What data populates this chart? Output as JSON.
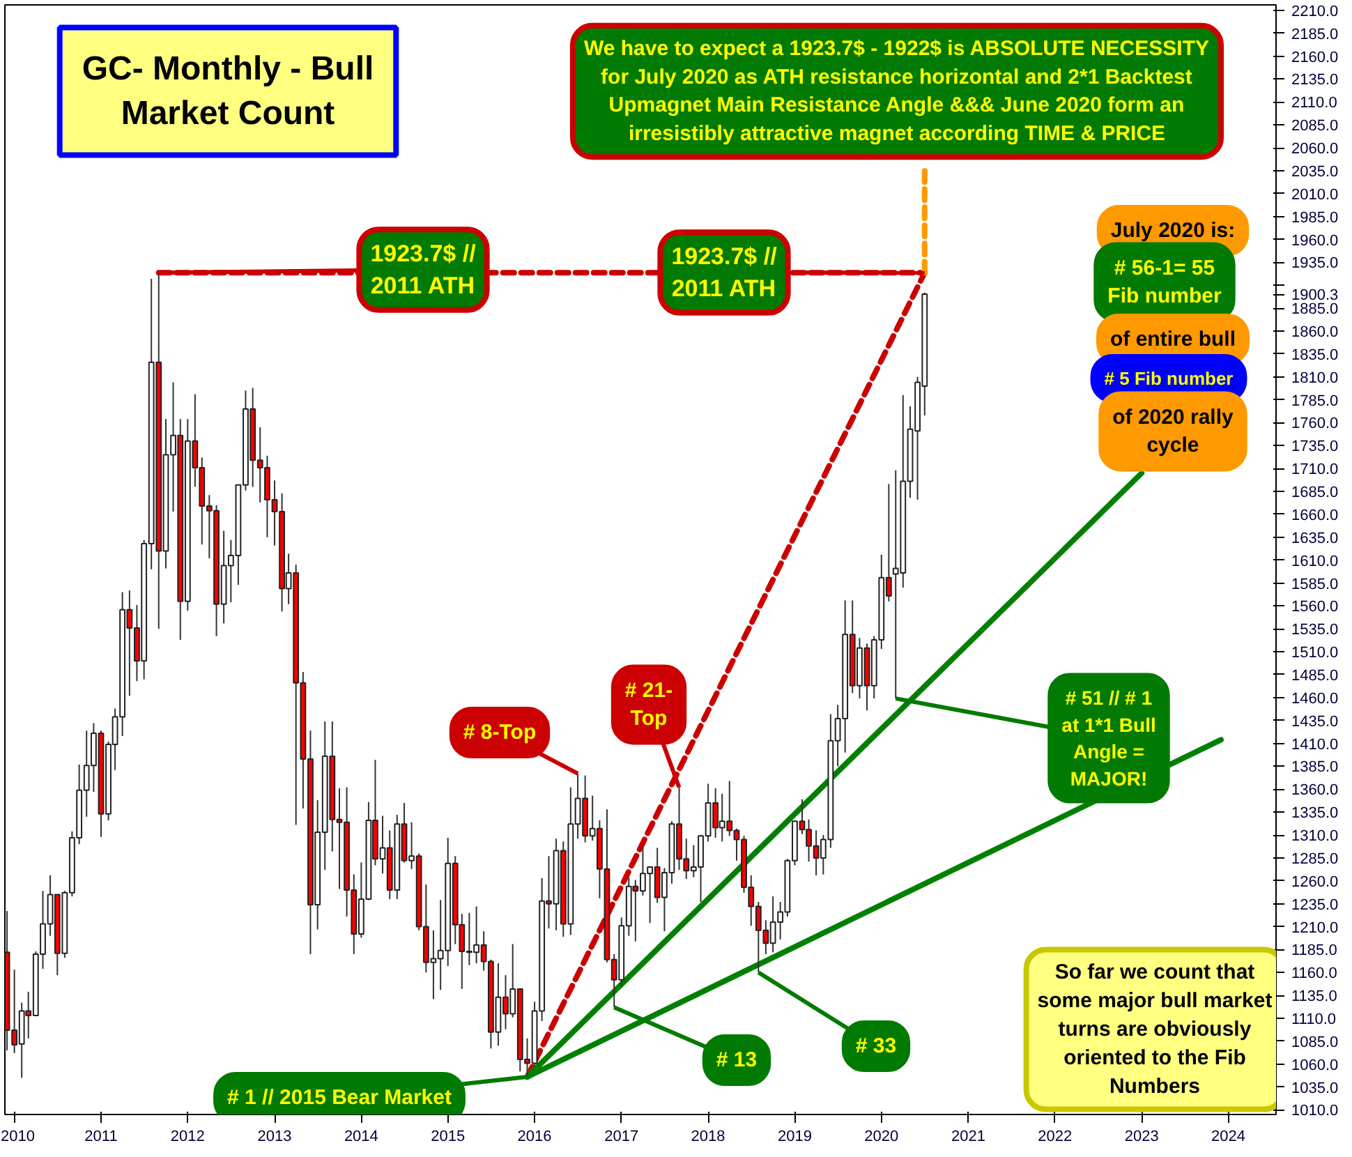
{
  "chart_data": {
    "type": "candlestick",
    "title": "GC- Monthly - Bull Market Count",
    "xlim": [
      "2009-11-22",
      "2024-07-20"
    ],
    "ylim": [
      1005,
      2216
    ],
    "xticks": [
      "2010",
      "2011",
      "2012",
      "2013",
      "2014",
      "2015",
      "2016",
      "2017",
      "2018",
      "2019",
      "2020",
      "2021",
      "2022",
      "2023",
      "2024"
    ],
    "yticks": [
      {
        "value": 1010,
        "label": "1010.0"
      },
      {
        "value": 1035,
        "label": "1035.0"
      },
      {
        "value": 1060,
        "label": "1060.0"
      },
      {
        "value": 1085,
        "label": "1085.0"
      },
      {
        "value": 1110,
        "label": "1110.0"
      },
      {
        "value": 1135,
        "label": "1135.0"
      },
      {
        "value": 1160,
        "label": "1160.0"
      },
      {
        "value": 1185,
        "label": "1185.0"
      },
      {
        "value": 1210,
        "label": "1210.0"
      },
      {
        "value": 1235,
        "label": "1235.0"
      },
      {
        "value": 1260,
        "label": "1260.0"
      },
      {
        "value": 1285,
        "label": "1285.0"
      },
      {
        "value": 1310,
        "label": "1310.0"
      },
      {
        "value": 1335,
        "label": "1335.0"
      },
      {
        "value": 1360,
        "label": "1360.0"
      },
      {
        "value": 1385,
        "label": "1385.0"
      },
      {
        "value": 1410,
        "label": "1410.0"
      },
      {
        "value": 1435,
        "label": "1435.0"
      },
      {
        "value": 1460,
        "label": "1460.0"
      },
      {
        "value": 1485,
        "label": "1485.0"
      },
      {
        "value": 1510,
        "label": "1510.0"
      },
      {
        "value": 1535,
        "label": "1535.0"
      },
      {
        "value": 1560,
        "label": "1560.0"
      },
      {
        "value": 1585,
        "label": "1585.0"
      },
      {
        "value": 1610,
        "label": "1610.0"
      },
      {
        "value": 1635,
        "label": "1635.0"
      },
      {
        "value": 1660,
        "label": "1660.0"
      },
      {
        "value": 1685,
        "label": "1685.0"
      },
      {
        "value": 1710,
        "label": "1710.0"
      },
      {
        "value": 1735,
        "label": "1735.0"
      },
      {
        "value": 1760,
        "label": "1760.0"
      },
      {
        "value": 1785,
        "label": "1785.0"
      },
      {
        "value": 1810,
        "label": "1810.0"
      },
      {
        "value": 1835,
        "label": "1835.0"
      },
      {
        "value": 1860,
        "label": "1860.0"
      },
      {
        "value": 1885,
        "label": "1885.0"
      },
      {
        "value": 1900.3,
        "label": "1900.3"
      },
      {
        "value": 1910,
        "label": null
      },
      {
        "value": 1935,
        "label": "1935.0"
      },
      {
        "value": 1960,
        "label": "1960.0"
      },
      {
        "value": 1985,
        "label": "1985.0"
      },
      {
        "value": 2010,
        "label": "2010.0"
      },
      {
        "value": 2035,
        "label": "2035.0"
      },
      {
        "value": 2060,
        "label": "2060.0"
      },
      {
        "value": 2085,
        "label": "2085.0"
      },
      {
        "value": 2110,
        "label": "2110.0"
      },
      {
        "value": 2135,
        "label": "2135.0"
      },
      {
        "value": 2160,
        "label": "2160.0"
      },
      {
        "value": 2185,
        "label": "2185.0"
      },
      {
        "value": 2210,
        "label": "2210.0"
      }
    ],
    "x": [
      "2009-12",
      "2010-01",
      "2010-02",
      "2010-03",
      "2010-04",
      "2010-05",
      "2010-06",
      "2010-07",
      "2010-08",
      "2010-09",
      "2010-10",
      "2010-11",
      "2010-12",
      "2011-01",
      "2011-02",
      "2011-03",
      "2011-04",
      "2011-05",
      "2011-06",
      "2011-07",
      "2011-08",
      "2011-09",
      "2011-10",
      "2011-11",
      "2011-12",
      "2012-01",
      "2012-02",
      "2012-03",
      "2012-04",
      "2012-05",
      "2012-06",
      "2012-07",
      "2012-08",
      "2012-09",
      "2012-10",
      "2012-11",
      "2012-12",
      "2013-01",
      "2013-02",
      "2013-03",
      "2013-04",
      "2013-05",
      "2013-06",
      "2013-07",
      "2013-08",
      "2013-09",
      "2013-10",
      "2013-11",
      "2013-12",
      "2014-01",
      "2014-02",
      "2014-03",
      "2014-04",
      "2014-05",
      "2014-06",
      "2014-07",
      "2014-08",
      "2014-09",
      "2014-10",
      "2014-11",
      "2014-12",
      "2015-01",
      "2015-02",
      "2015-03",
      "2015-04",
      "2015-05",
      "2015-06",
      "2015-07",
      "2015-08",
      "2015-09",
      "2015-10",
      "2015-11",
      "2015-12",
      "2016-01",
      "2016-02",
      "2016-03",
      "2016-04",
      "2016-05",
      "2016-06",
      "2016-07",
      "2016-08",
      "2016-09",
      "2016-10",
      "2016-11",
      "2016-12",
      "2017-01",
      "2017-02",
      "2017-03",
      "2017-04",
      "2017-05",
      "2017-06",
      "2017-07",
      "2017-08",
      "2017-09",
      "2017-10",
      "2017-11",
      "2017-12",
      "2018-01",
      "2018-02",
      "2018-03",
      "2018-04",
      "2018-05",
      "2018-06",
      "2018-07",
      "2018-08",
      "2018-09",
      "2018-10",
      "2018-11",
      "2018-12",
      "2019-01",
      "2019-02",
      "2019-03",
      "2019-04",
      "2019-05",
      "2019-06",
      "2019-07",
      "2019-08",
      "2019-09",
      "2019-10",
      "2019-11",
      "2019-12",
      "2020-01",
      "2020-02",
      "2020-03",
      "2020-04",
      "2020-05",
      "2020-06",
      "2020-07"
    ],
    "ohlc": [
      [
        1182,
        1227,
        1075,
        1097
      ],
      [
        1097,
        1163,
        1072,
        1081
      ],
      [
        1082,
        1127,
        1045,
        1118
      ],
      [
        1118,
        1139,
        1088,
        1113
      ],
      [
        1113,
        1183,
        1113,
        1180
      ],
      [
        1180,
        1249,
        1164,
        1213
      ],
      [
        1213,
        1266,
        1200,
        1245
      ],
      [
        1245,
        1245,
        1157,
        1181
      ],
      [
        1181,
        1249,
        1176,
        1247
      ],
      [
        1247,
        1314,
        1243,
        1307
      ],
      [
        1307,
        1387,
        1300,
        1359
      ],
      [
        1359,
        1424,
        1330,
        1386
      ],
      [
        1386,
        1432,
        1357,
        1421
      ],
      [
        1421,
        1424,
        1308,
        1333
      ],
      [
        1333,
        1412,
        1326,
        1409
      ],
      [
        1409,
        1448,
        1381,
        1439
      ],
      [
        1439,
        1575,
        1418,
        1556
      ],
      [
        1556,
        1577,
        1462,
        1536
      ],
      [
        1536,
        1561,
        1478,
        1500
      ],
      [
        1500,
        1632,
        1480,
        1628
      ],
      [
        1628,
        1917,
        1600,
        1826
      ],
      [
        1826,
        1923.7,
        1535,
        1620
      ],
      [
        1620,
        1764,
        1601,
        1725
      ],
      [
        1725,
        1804,
        1663,
        1746
      ],
      [
        1746,
        1764,
        1523,
        1565
      ],
      [
        1565,
        1764,
        1555,
        1740
      ],
      [
        1740,
        1791,
        1690,
        1711
      ],
      [
        1711,
        1722,
        1627,
        1669
      ],
      [
        1669,
        1681,
        1612,
        1664
      ],
      [
        1664,
        1670,
        1527,
        1562
      ],
      [
        1562,
        1642,
        1541,
        1604
      ],
      [
        1604,
        1632,
        1564,
        1615
      ],
      [
        1615,
        1692,
        1583,
        1692
      ],
      [
        1692,
        1795,
        1686,
        1775
      ],
      [
        1775,
        1798,
        1690,
        1719
      ],
      [
        1719,
        1755,
        1673,
        1711
      ],
      [
        1711,
        1724,
        1635,
        1676
      ],
      [
        1676,
        1697,
        1626,
        1663
      ],
      [
        1663,
        1683,
        1554,
        1579
      ],
      [
        1579,
        1617,
        1562,
        1596
      ],
      [
        1596,
        1605,
        1321,
        1476
      ],
      [
        1476,
        1488,
        1339,
        1393
      ],
      [
        1393,
        1424,
        1180,
        1234
      ],
      [
        1234,
        1348,
        1207,
        1313
      ],
      [
        1313,
        1434,
        1272,
        1396
      ],
      [
        1396,
        1434,
        1292,
        1327
      ],
      [
        1327,
        1361,
        1251,
        1324
      ],
      [
        1324,
        1362,
        1221,
        1250
      ],
      [
        1250,
        1267,
        1180,
        1202
      ],
      [
        1202,
        1280,
        1198,
        1240
      ],
      [
        1240,
        1346,
        1239,
        1326
      ],
      [
        1326,
        1392,
        1277,
        1284
      ],
      [
        1284,
        1331,
        1268,
        1296
      ],
      [
        1296,
        1315,
        1240,
        1250
      ],
      [
        1250,
        1332,
        1240,
        1322
      ],
      [
        1322,
        1345,
        1280,
        1282
      ],
      [
        1282,
        1324,
        1273,
        1287
      ],
      [
        1287,
        1290,
        1206,
        1210
      ],
      [
        1210,
        1256,
        1160,
        1171
      ],
      [
        1171,
        1206,
        1131,
        1175
      ],
      [
        1175,
        1239,
        1141,
        1184
      ],
      [
        1184,
        1307,
        1167,
        1279
      ],
      [
        1279,
        1287,
        1191,
        1212
      ],
      [
        1212,
        1224,
        1142,
        1183
      ],
      [
        1183,
        1225,
        1168,
        1182
      ],
      [
        1182,
        1232,
        1170,
        1190
      ],
      [
        1190,
        1205,
        1162,
        1172
      ],
      [
        1172,
        1174,
        1077,
        1095
      ],
      [
        1095,
        1170,
        1080,
        1133
      ],
      [
        1133,
        1157,
        1098,
        1115
      ],
      [
        1115,
        1191,
        1111,
        1142
      ],
      [
        1142,
        1142,
        1052,
        1065
      ],
      [
        1065,
        1088,
        1046,
        1061
      ],
      [
        1061,
        1128,
        1058,
        1118
      ],
      [
        1118,
        1263,
        1107,
        1238
      ],
      [
        1238,
        1287,
        1208,
        1235
      ],
      [
        1235,
        1306,
        1206,
        1293
      ],
      [
        1293,
        1303,
        1199,
        1213
      ],
      [
        1213,
        1362,
        1201,
        1322
      ],
      [
        1322,
        1377,
        1306,
        1350
      ],
      [
        1350,
        1375,
        1302,
        1309
      ],
      [
        1309,
        1353,
        1304,
        1317
      ],
      [
        1317,
        1326,
        1241,
        1273
      ],
      [
        1273,
        1338,
        1171,
        1174
      ],
      [
        1174,
        1180,
        1122,
        1152
      ],
      [
        1152,
        1220,
        1145,
        1211
      ],
      [
        1211,
        1264,
        1200,
        1254
      ],
      [
        1254,
        1261,
        1194,
        1249
      ],
      [
        1249,
        1297,
        1244,
        1268
      ],
      [
        1268,
        1276,
        1214,
        1275
      ],
      [
        1275,
        1296,
        1236,
        1242
      ],
      [
        1242,
        1274,
        1205,
        1269
      ],
      [
        1269,
        1325,
        1257,
        1322
      ],
      [
        1322,
        1362,
        1272,
        1284
      ],
      [
        1284,
        1306,
        1262,
        1271
      ],
      [
        1271,
        1299,
        1264,
        1275
      ],
      [
        1275,
        1310,
        1237,
        1309
      ],
      [
        1309,
        1366,
        1303,
        1345
      ],
      [
        1345,
        1361,
        1307,
        1318
      ],
      [
        1318,
        1355,
        1303,
        1325
      ],
      [
        1325,
        1369,
        1309,
        1315
      ],
      [
        1315,
        1317,
        1282,
        1305
      ],
      [
        1305,
        1309,
        1247,
        1253
      ],
      [
        1253,
        1266,
        1211,
        1232
      ],
      [
        1232,
        1237,
        1160,
        1206
      ],
      [
        1206,
        1217,
        1180,
        1192
      ],
      [
        1192,
        1243,
        1182,
        1215
      ],
      [
        1215,
        1237,
        1196,
        1226
      ],
      [
        1226,
        1284,
        1221,
        1282
      ],
      [
        1282,
        1326,
        1277,
        1325
      ],
      [
        1325,
        1349,
        1311,
        1316
      ],
      [
        1316,
        1327,
        1281,
        1298
      ],
      [
        1298,
        1315,
        1266,
        1285
      ],
      [
        1285,
        1310,
        1267,
        1305
      ],
      [
        1305,
        1442,
        1296,
        1413
      ],
      [
        1413,
        1452,
        1385,
        1437
      ],
      [
        1437,
        1566,
        1400,
        1529
      ],
      [
        1529,
        1566,
        1465,
        1473
      ],
      [
        1473,
        1525,
        1459,
        1514
      ],
      [
        1514,
        1519,
        1446,
        1473
      ],
      [
        1473,
        1527,
        1459,
        1523
      ],
      [
        1523,
        1616,
        1513,
        1591
      ],
      [
        1591,
        1693,
        1565,
        1571
      ],
      [
        1595,
        1708,
        1459,
        1601
      ],
      [
        1596,
        1790,
        1580,
        1696
      ],
      [
        1696,
        1778,
        1678,
        1753
      ],
      [
        1751,
        1810,
        1676,
        1804
      ],
      [
        1800,
        1902,
        1768,
        1900.3
      ]
    ],
    "colors": [
      "#ff0000",
      "#ff0000",
      "#ffffff",
      "#ff0000",
      "#ffffff",
      "#ffffff",
      "#ffffff",
      "#ff0000",
      "#ffffff",
      "#ffffff",
      "#ffffff",
      "#ffffff",
      "#ffffff",
      "#ff0000",
      "#ffffff",
      "#ffffff",
      "#ffffff",
      "#ff0000",
      "#ff0000",
      "#ffffff",
      "#ffffff",
      "#ff0000",
      "#ffffff",
      "#ffffff",
      "#ff0000",
      "#ffffff",
      "#ff0000",
      "#ff0000",
      "#ff0000",
      "#ff0000",
      "#ffffff",
      "#ffffff",
      "#ffffff",
      "#ffffff",
      "#ff0000",
      "#ff0000",
      "#ff0000",
      "#ff0000",
      "#ff0000",
      "#ffffff",
      "#ff0000",
      "#ff0000",
      "#ff0000",
      "#ffffff",
      "#ffffff",
      "#ff0000",
      "#ff0000",
      "#ff0000",
      "#ff0000",
      "#ffffff",
      "#ffffff",
      "#ff0000",
      "#ffffff",
      "#ff0000",
      "#ffffff",
      "#ff0000",
      "#ffffff",
      "#ff0000",
      "#ff0000",
      "#ffffff",
      "#ffffff",
      "#ffffff",
      "#ff0000",
      "#ff0000",
      "#ff0000",
      "#ffffff",
      "#ff0000",
      "#ff0000",
      "#ffffff",
      "#ff0000",
      "#ffffff",
      "#ff0000",
      "#ff0000",
      "#ffffff",
      "#ffffff",
      "#ff0000",
      "#ffffff",
      "#ff0000",
      "#ffffff",
      "#ffffff",
      "#ff0000",
      "#ffffff",
      "#ff0000",
      "#ff0000",
      "#ff0000",
      "#ffffff",
      "#ffffff",
      "#ff0000",
      "#ffffff",
      "#ffffff",
      "#ff0000",
      "#ffffff",
      "#ffffff",
      "#ff0000",
      "#ff0000",
      "#ffffff",
      "#ffffff",
      "#ffffff",
      "#ff0000",
      "#ffffff",
      "#ff0000",
      "#ff0000",
      "#ff0000",
      "#ff0000",
      "#ff0000",
      "#ff0000",
      "#ffffff",
      "#ffffff",
      "#ffffff",
      "#ffffff",
      "#ff0000",
      "#ff0000",
      "#ff0000",
      "#ffffff",
      "#ffffff",
      "#ffffff",
      "#ffffff",
      "#ff0000",
      "#ffffff",
      "#ff0000",
      "#ffffff",
      "#ffffff",
      "#ff0000",
      "#ffffff",
      "#ffffff",
      "#ffffff",
      "#ffffff",
      "#ffffff"
    ],
    "series": [
      {
        "type": "line",
        "x": [
          "2011-09",
          "2020-07"
        ],
        "values": [
          1923.7,
          1923.7
        ],
        "color": "#cc0000",
        "line_style": "dashed"
      },
      {
        "type": "line",
        "x": [
          "2015-12",
          "2020-07"
        ],
        "values": [
          1046,
          1923.7
        ],
        "color": "#cc0000",
        "line_style": "dashed"
      },
      {
        "type": "line",
        "x": [
          "2020-07",
          "2020-07"
        ],
        "values": [
          1923.7,
          2040
        ],
        "color": "#ff9900",
        "line_style": "dashed"
      },
      {
        "type": "line",
        "x": [
          "2015-12",
          "2023-01"
        ],
        "values": [
          1046,
          1705
        ],
        "color": "#008000",
        "line_style": "solid"
      },
      {
        "type": "line",
        "x": [
          "2015-12",
          "2023-12"
        ],
        "values": [
          1046,
          1414
        ],
        "color": "#008000",
        "line_style": "solid"
      }
    ],
    "annotations": [
      "We have to expect a 1923.7$ - 1922$ is ABSOLUTE NECESSITY for July 2020 as ATH resistance horizontal and 2*1 Backtest Upmagnet Main Resistance Angle &&& June 2020 form an irresistibly attractive magnet according TIME & PRICE",
      {
        "text": "1923.7$ // 2011 ATH",
        "x": "2011-09",
        "y": 1923.7
      },
      {
        "text": "1923.7$ // 2011 ATH",
        "x": "2020-07",
        "y": 1923.7
      },
      "July 2020 is:",
      "# 56-1= 55 Fib number",
      "of entire bull",
      "# 5 Fib number",
      "of 2020 rally cycle",
      {
        "text": "# 8-Top",
        "x": "2016-07",
        "y": 1377
      },
      {
        "text": "# 21- Top",
        "x": "2017-09",
        "y": 1362
      },
      {
        "text": "# 51 // # 1 at 1*1 Bull Angle = MAJOR!",
        "x": "2020-03",
        "y": 1459
      },
      {
        "text": "# 13",
        "x": "2016-12",
        "y": 1122
      },
      {
        "text": "# 33",
        "x": "2018-08",
        "y": 1160
      },
      {
        "text": "# 1 // 2015 Bear Market",
        "x": "2015-12",
        "y": 1046
      },
      "So far we count that some major bull market turns are obviously oriented to the Fib Numbers"
    ]
  }
}
